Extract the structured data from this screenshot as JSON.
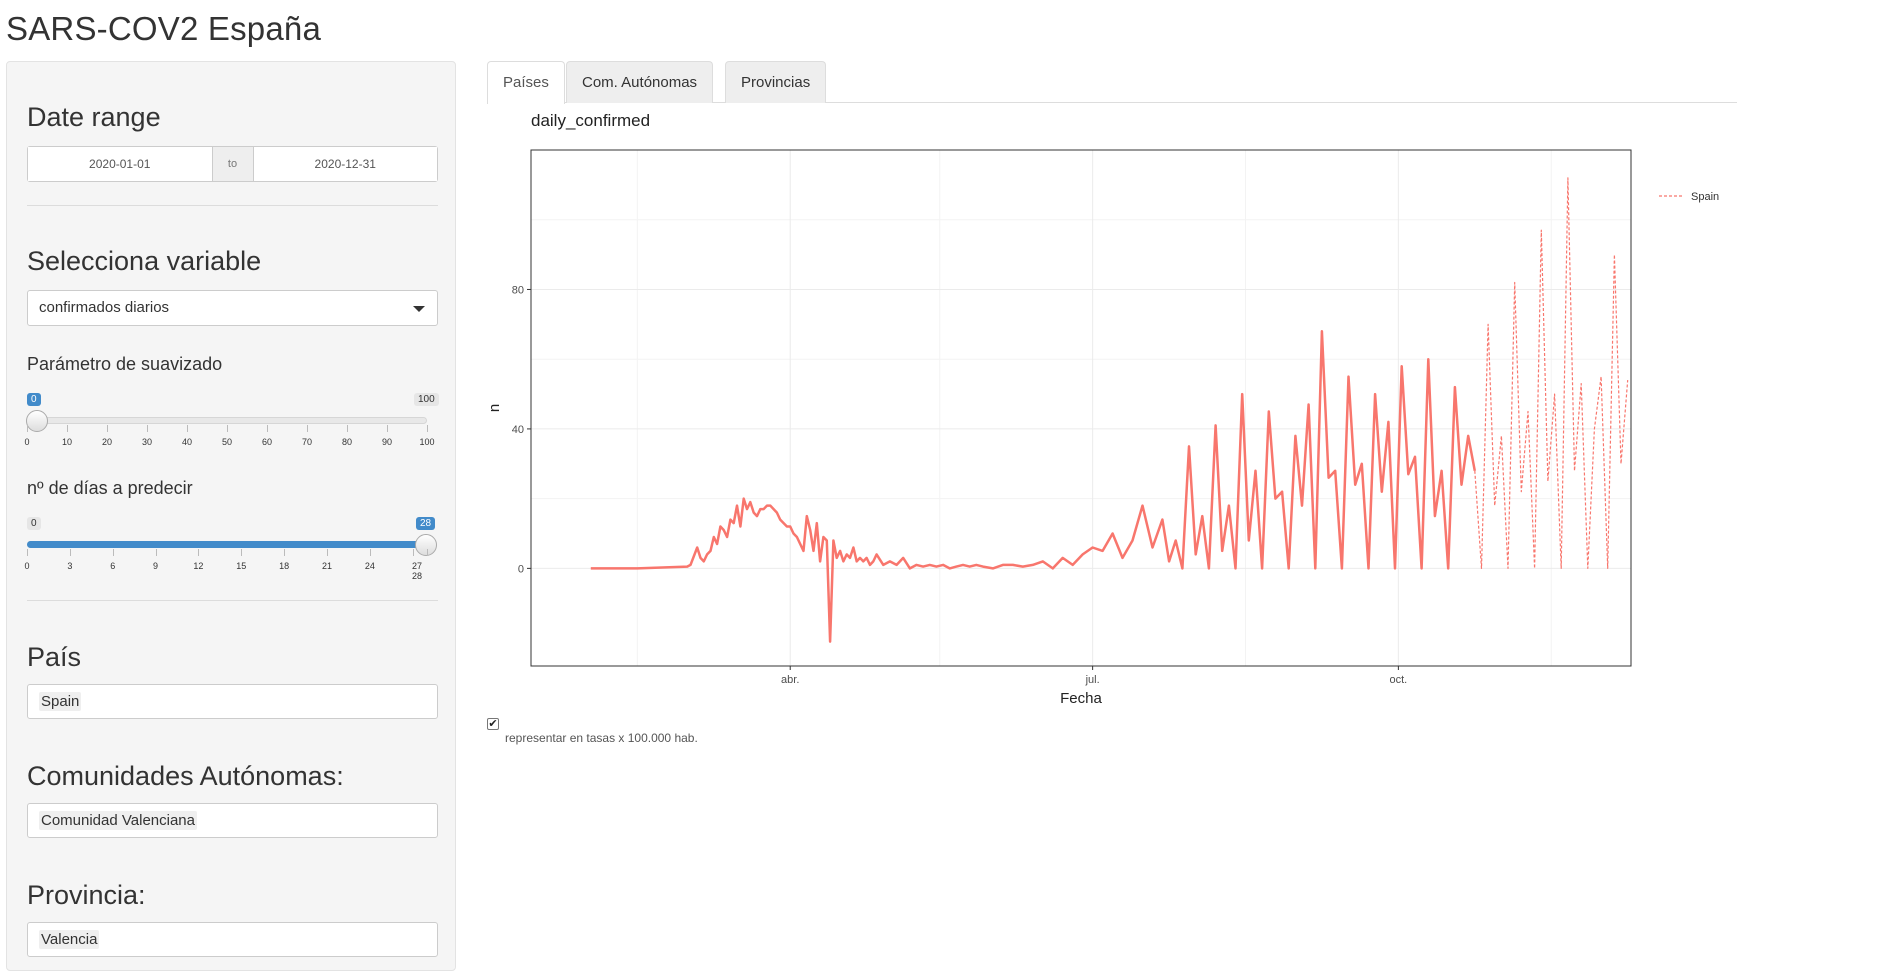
{
  "app": {
    "title": "SARS-COV2 España"
  },
  "sidebar": {
    "date_range": {
      "title": "Date range",
      "start": "2020-01-01",
      "separator": "to",
      "end": "2020-12-31"
    },
    "variable": {
      "title": "Selecciona variable",
      "selected": "confirmados diarios"
    },
    "smoothing": {
      "label": "Parámetro de suavizado",
      "min": "0",
      "max": "100",
      "value": "0",
      "ticks": [
        "0",
        "10",
        "20",
        "30",
        "40",
        "50",
        "60",
        "70",
        "80",
        "90",
        "100"
      ]
    },
    "predict_days": {
      "label": "nº de días a predecir",
      "min": "0",
      "max": "28",
      "value": "28",
      "ticks": [
        "0",
        "3",
        "6",
        "9",
        "12",
        "15",
        "18",
        "21",
        "24",
        "27",
        "28"
      ],
      "tick_label_27_28": "27 28"
    },
    "country": {
      "title": "País",
      "value": "Spain"
    },
    "autonomous": {
      "title": "Comunidades Autónomas:",
      "value": "Comunidad Valenciana"
    },
    "province": {
      "title": "Provincia:",
      "value": "Valencia"
    }
  },
  "tabs": [
    {
      "label": "Países",
      "active": true
    },
    {
      "label": "Com. Autónomas",
      "active": false
    },
    {
      "label": "Provincias",
      "active": false
    }
  ],
  "options": {
    "rates_label": "representar en tasas x 100.000 hab.",
    "rates_checked": true
  },
  "chart_data": {
    "type": "line",
    "title": "daily_confirmed",
    "xlabel": "Fecha",
    "ylabel": "n",
    "x_tick_labels": [
      "abr.",
      "jul.",
      "oct."
    ],
    "y_ticks": [
      0,
      40,
      80
    ],
    "ylim": [
      -28,
      120
    ],
    "xlim": [
      "2020-01-14",
      "2020-12-10"
    ],
    "grid": true,
    "legend_position": "right",
    "colors": {
      "series": "#F8766D",
      "panel_border": "#333333",
      "grid": "#ebebeb"
    },
    "series": [
      {
        "name": "Spain",
        "style": "solid",
        "x": [
          "2020-02-01",
          "2020-02-15",
          "2020-03-01",
          "2020-03-02",
          "2020-03-04",
          "2020-03-05",
          "2020-03-06",
          "2020-03-07",
          "2020-03-08",
          "2020-03-09",
          "2020-03-10",
          "2020-03-11",
          "2020-03-12",
          "2020-03-13",
          "2020-03-14",
          "2020-03-15",
          "2020-03-16",
          "2020-03-17",
          "2020-03-18",
          "2020-03-19",
          "2020-03-20",
          "2020-03-21",
          "2020-03-22",
          "2020-03-23",
          "2020-03-24",
          "2020-03-25",
          "2020-03-26",
          "2020-03-27",
          "2020-03-28",
          "2020-03-29",
          "2020-03-30",
          "2020-03-31",
          "2020-04-01",
          "2020-04-02",
          "2020-04-03",
          "2020-04-04",
          "2020-04-05",
          "2020-04-06",
          "2020-04-07",
          "2020-04-08",
          "2020-04-09",
          "2020-04-10",
          "2020-04-11",
          "2020-04-12",
          "2020-04-13",
          "2020-04-14",
          "2020-04-15",
          "2020-04-16",
          "2020-04-17",
          "2020-04-18",
          "2020-04-19",
          "2020-04-20",
          "2020-04-21",
          "2020-04-22",
          "2020-04-23",
          "2020-04-24",
          "2020-04-25",
          "2020-04-26",
          "2020-04-27",
          "2020-04-29",
          "2020-05-01",
          "2020-05-03",
          "2020-05-05",
          "2020-05-07",
          "2020-05-09",
          "2020-05-11",
          "2020-05-13",
          "2020-05-15",
          "2020-05-17",
          "2020-05-19",
          "2020-05-21",
          "2020-05-23",
          "2020-05-25",
          "2020-05-27",
          "2020-05-29",
          "2020-06-01",
          "2020-06-04",
          "2020-06-07",
          "2020-06-10",
          "2020-06-13",
          "2020-06-16",
          "2020-06-19",
          "2020-06-22",
          "2020-06-25",
          "2020-06-28",
          "2020-07-01",
          "2020-07-04",
          "2020-07-07",
          "2020-07-10",
          "2020-07-13",
          "2020-07-16",
          "2020-07-19",
          "2020-07-22",
          "2020-07-24",
          "2020-07-26",
          "2020-07-28",
          "2020-07-30",
          "2020-08-01",
          "2020-08-03",
          "2020-08-05",
          "2020-08-07",
          "2020-08-09",
          "2020-08-11",
          "2020-08-13",
          "2020-08-15",
          "2020-08-17",
          "2020-08-19",
          "2020-08-21",
          "2020-08-23",
          "2020-08-25",
          "2020-08-27",
          "2020-08-29",
          "2020-08-31",
          "2020-09-02",
          "2020-09-04",
          "2020-09-06",
          "2020-09-08",
          "2020-09-10",
          "2020-09-12",
          "2020-09-14",
          "2020-09-16",
          "2020-09-18",
          "2020-09-20",
          "2020-09-22",
          "2020-09-24",
          "2020-09-26",
          "2020-09-28",
          "2020-09-30",
          "2020-10-02",
          "2020-10-04",
          "2020-10-06",
          "2020-10-08",
          "2020-10-10",
          "2020-10-12",
          "2020-10-14",
          "2020-10-16",
          "2020-10-18",
          "2020-10-20",
          "2020-10-22",
          "2020-10-24"
        ],
        "y": [
          0,
          0,
          0.5,
          1,
          6,
          3,
          2,
          4,
          5,
          9,
          7,
          12,
          11,
          9,
          14,
          13,
          18,
          12,
          20,
          17,
          19,
          16,
          15,
          17,
          17,
          18,
          18,
          17,
          16,
          14,
          13,
          12,
          12,
          10,
          9,
          7,
          5,
          15,
          11,
          5,
          13,
          2,
          9,
          8,
          -21,
          8,
          3,
          5,
          2,
          4,
          3,
          6,
          2,
          3,
          2,
          3,
          1,
          2,
          4,
          1,
          2,
          1,
          3,
          0,
          1,
          0.5,
          1,
          0.5,
          1,
          0,
          0.5,
          1,
          0.5,
          1,
          0.5,
          0,
          1,
          1,
          0.5,
          1,
          2,
          0,
          3,
          1,
          4,
          6,
          5,
          10,
          3,
          8,
          18,
          6,
          14,
          2,
          8,
          0,
          35,
          4,
          15,
          0,
          41,
          5,
          18,
          0,
          50,
          8,
          28,
          0,
          45,
          20,
          22,
          0,
          38,
          18,
          47,
          0,
          68,
          26,
          28,
          0,
          55,
          24,
          30,
          0,
          50,
          22,
          42,
          0,
          58,
          27,
          32,
          0,
          60,
          15,
          28,
          0,
          52,
          24,
          38,
          28
        ]
      },
      {
        "name": "Spain",
        "style": "dashed",
        "x": [
          "2020-10-24",
          "2020-10-26",
          "2020-10-28",
          "2020-10-30",
          "2020-11-01",
          "2020-11-03",
          "2020-11-05",
          "2020-11-07",
          "2020-11-09",
          "2020-11-11",
          "2020-11-13",
          "2020-11-15",
          "2020-11-17",
          "2020-11-19",
          "2020-11-21",
          "2020-11-23",
          "2020-11-25",
          "2020-11-27",
          "2020-11-29",
          "2020-12-01",
          "2020-12-03",
          "2020-12-05",
          "2020-12-07",
          "2020-12-09"
        ],
        "y": [
          28,
          0,
          70,
          18,
          38,
          0,
          82,
          22,
          45,
          0,
          97,
          25,
          50,
          0,
          112,
          28,
          53,
          0,
          40,
          55,
          0,
          90,
          30,
          54
        ]
      }
    ]
  }
}
